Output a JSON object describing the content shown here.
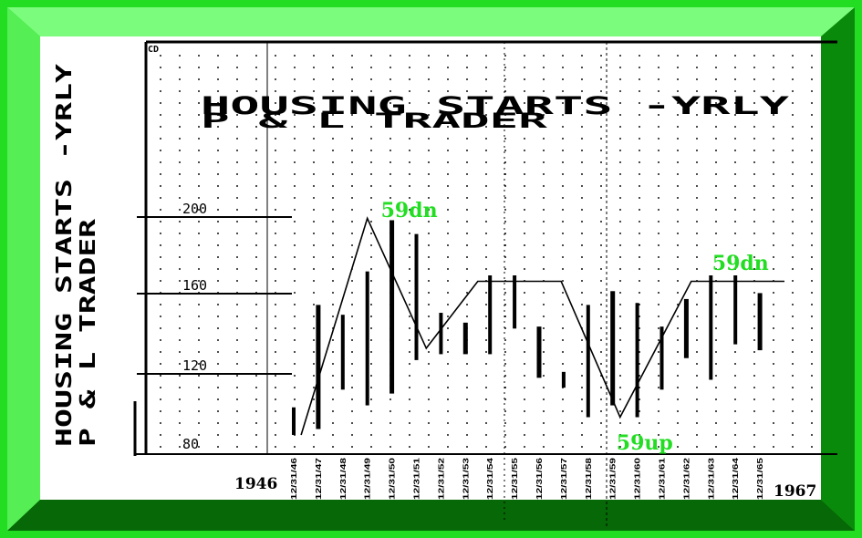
{
  "frame_colors": {
    "outer": "#22dd22",
    "bevel_top": "#7cfc7c",
    "bevel_left": "#55ee55",
    "bevel_right": "#0a8a0a",
    "bevel_bottom": "#066806",
    "paper": "#ffffff",
    "ink": "#000000",
    "annotation": "#22dd22"
  },
  "chart_data": {
    "type": "bar",
    "style": "high-low range bars (vertical price bars) with swing line",
    "title_lines": [
      "HOUSING STARTS -YRLY",
      "P & L TRADER"
    ],
    "side_title_lines": [
      "HOUSING STARTS -YRLY",
      "P & L TRADER"
    ],
    "corner_label": "CD",
    "y_ticks": [
      "200",
      "160",
      "120",
      "80"
    ],
    "y_tick_values": [
      200,
      160,
      120,
      80
    ],
    "ylim": [
      80,
      218
    ],
    "grid": true,
    "start_year": "1946",
    "end_year": "1967",
    "bars": [
      {
        "date": "12/31/46",
        "high": 103,
        "low": 89
      },
      {
        "date": "12/31/47",
        "high": 155,
        "low": 92
      },
      {
        "date": "12/31/48",
        "high": 150,
        "low": 112
      },
      {
        "date": "12/31/49",
        "high": 172,
        "low": 104
      },
      {
        "date": "12/31/50",
        "high": 198,
        "low": 110
      },
      {
        "date": "12/31/51",
        "high": 191,
        "low": 127
      },
      {
        "date": "12/31/52",
        "high": 151,
        "low": 130
      },
      {
        "date": "12/31/53",
        "high": 146,
        "low": 130
      },
      {
        "date": "12/31/54",
        "high": 170,
        "low": 130
      },
      {
        "date": "12/31/55",
        "high": 170,
        "low": 143
      },
      {
        "date": "12/31/56",
        "high": 144,
        "low": 118
      },
      {
        "date": "12/31/57",
        "high": 121,
        "low": 113
      },
      {
        "date": "12/31/58",
        "high": 155,
        "low": 98
      },
      {
        "date": "12/31/59",
        "high": 162,
        "low": 104
      },
      {
        "date": "12/31/60",
        "high": 156,
        "low": 98
      },
      {
        "date": "12/31/61",
        "high": 144,
        "low": 112
      },
      {
        "date": "12/31/62",
        "high": 158,
        "low": 128
      },
      {
        "date": "12/31/63",
        "high": 170,
        "low": 117
      },
      {
        "date": "12/31/64",
        "high": 170,
        "low": 135
      },
      {
        "date": "12/31/65",
        "high": 161,
        "low": 132
      }
    ],
    "swing_line": [
      {
        "i": 0.3,
        "y": 89
      },
      {
        "i": 3.0,
        "y": 199
      },
      {
        "i": 5.4,
        "y": 133
      },
      {
        "i": 7.5,
        "y": 167
      },
      {
        "i": 10.9,
        "y": 167
      },
      {
        "i": 13.3,
        "y": 98
      },
      {
        "i": 16.2,
        "y": 167
      },
      {
        "i": 20.0,
        "y": 167
      }
    ],
    "annotations": [
      {
        "text": "59dn",
        "i": 4.0,
        "y": 202
      },
      {
        "text": "59dn",
        "i": 17.5,
        "y": 175
      },
      {
        "text": "59up",
        "i": 13.6,
        "y": 84
      }
    ]
  }
}
